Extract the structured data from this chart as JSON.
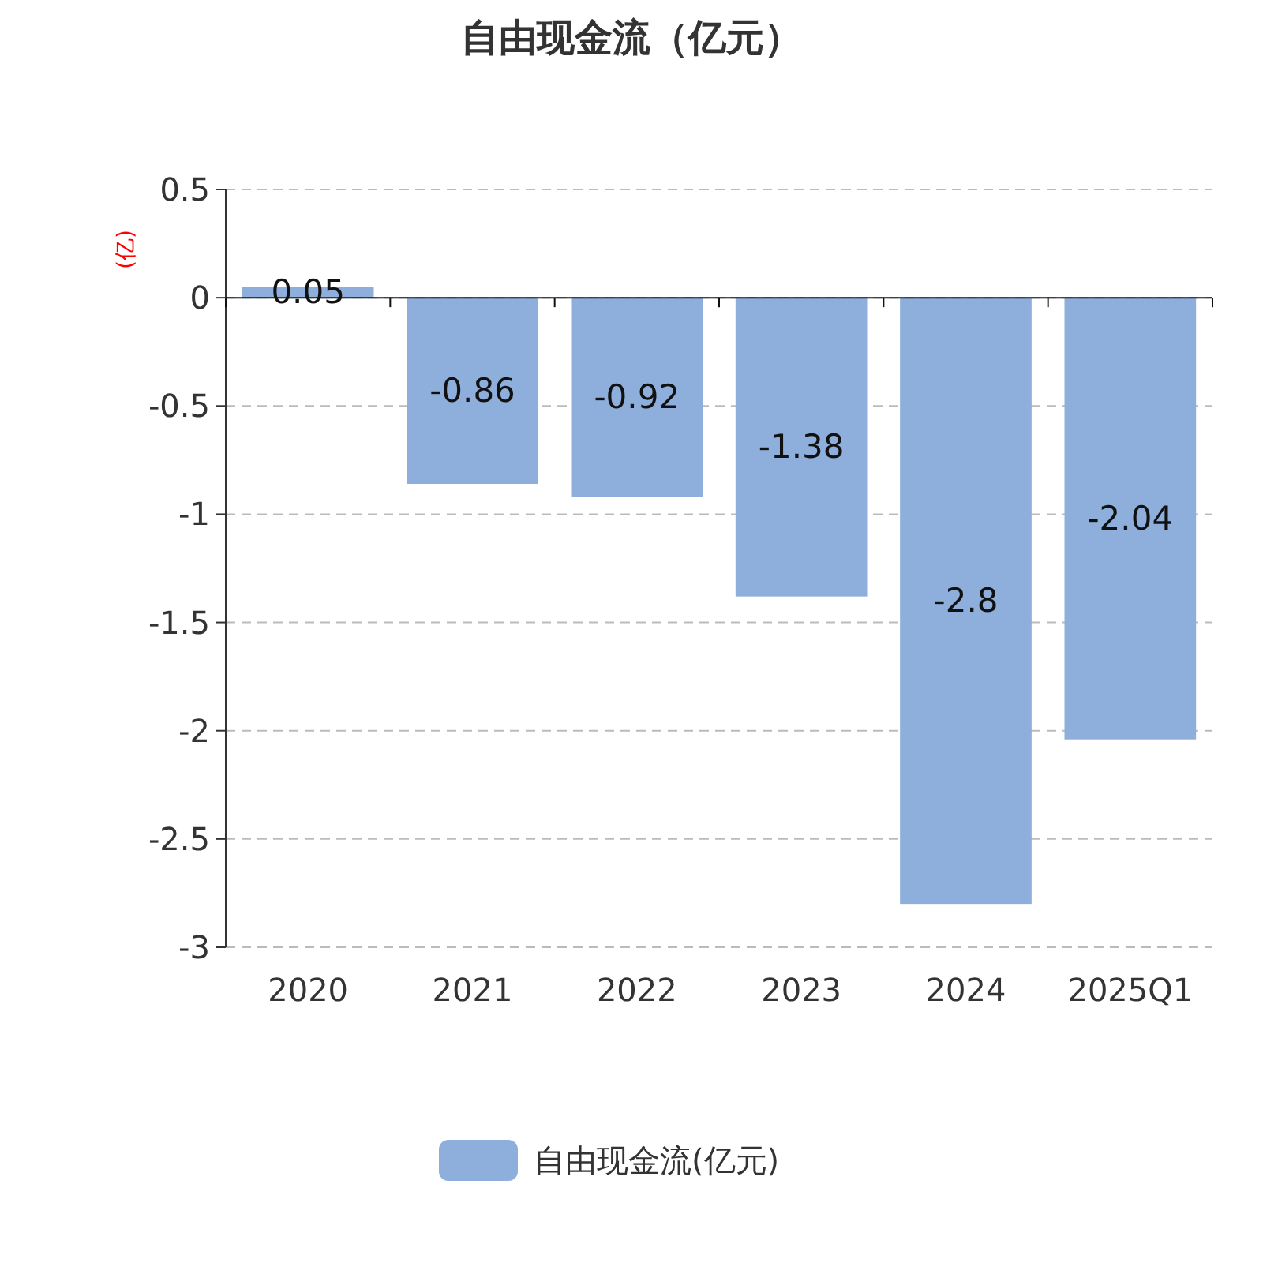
{
  "chart_data": {
    "type": "bar",
    "title": "自由现金流（亿元）",
    "ylabel": "(亿)",
    "categories": [
      "2020",
      "2021",
      "2022",
      "2023",
      "2024",
      "2025Q1"
    ],
    "series": [
      {
        "name": "自由现金流(亿元)",
        "color": "#8eaedb",
        "values": [
          0.05,
          -0.86,
          -0.92,
          -1.38,
          -2.8,
          -2.04
        ]
      }
    ],
    "ylim": [
      -3,
      0.5
    ],
    "yticks": [
      0.5,
      0,
      -0.5,
      -1,
      -1.5,
      -2,
      -2.5,
      -3
    ],
    "grid": "y",
    "legend": "bottom",
    "data_labels": true
  }
}
